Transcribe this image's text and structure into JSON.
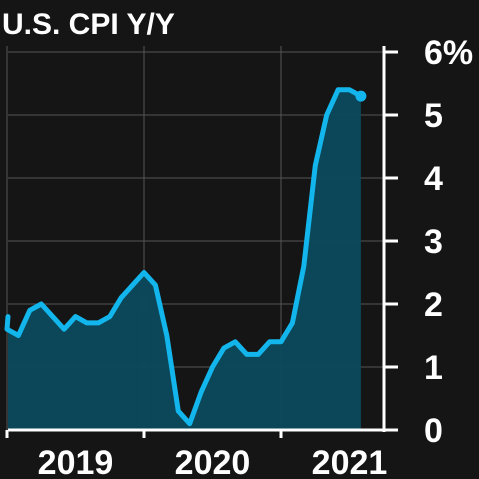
{
  "chart_data": {
    "type": "area",
    "title": "U.S. CPI Y/Y",
    "xlabel": "",
    "ylabel": "",
    "ylim": [
      0,
      6
    ],
    "y_ticks": [
      "0",
      "1",
      "2",
      "3",
      "4",
      "5",
      "6%"
    ],
    "x_tick_labels": [
      "2019",
      "2020",
      "2021"
    ],
    "grid": true,
    "x": [
      "2019-01",
      "2019-02",
      "2019-03",
      "2019-04",
      "2019-05",
      "2019-06",
      "2019-07",
      "2019-08",
      "2019-09",
      "2019-10",
      "2019-11",
      "2019-12",
      "2020-01",
      "2020-02",
      "2020-03",
      "2020-04",
      "2020-05",
      "2020-06",
      "2020-07",
      "2020-08",
      "2020-09",
      "2020-10",
      "2020-11",
      "2020-12",
      "2021-01",
      "2021-02",
      "2021-03",
      "2021-04",
      "2021-05",
      "2021-06",
      "2021-07",
      "2021-08"
    ],
    "series": [
      {
        "values": [
          1.6,
          1.5,
          1.9,
          2.0,
          1.8,
          1.6,
          1.8,
          1.7,
          1.7,
          1.8,
          2.1,
          2.3,
          2.5,
          2.3,
          1.5,
          0.3,
          0.1,
          0.6,
          1.0,
          1.3,
          1.4,
          1.2,
          1.2,
          1.4,
          1.4,
          1.7,
          2.6,
          4.2,
          5.0,
          5.4,
          5.4,
          5.3
        ]
      }
    ],
    "colors": {
      "line": "#13b6ec",
      "fill": "#0b4a5c",
      "grid": "#555555",
      "axis": "#ffffff",
      "background": "#151515"
    }
  }
}
